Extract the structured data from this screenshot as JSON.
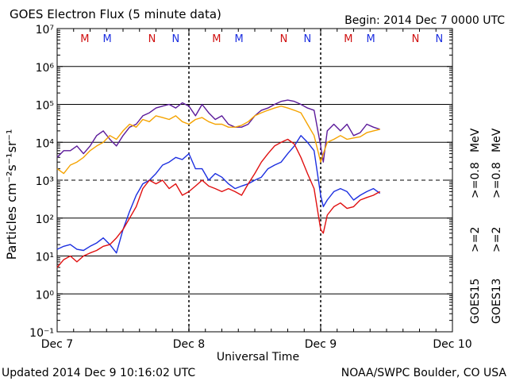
{
  "header": {
    "title": "GOES Electron Flux (5 minute data)",
    "begin": "Begin: 2014 Dec 7 0000 UTC"
  },
  "footer": {
    "updated": "Updated 2014 Dec  9 10:16:02 UTC",
    "credit": "NOAA/SWPC Boulder, CO USA"
  },
  "colors": {
    "goes15_08": "#5b1a9a",
    "goes13_08": "#f5a300",
    "goes15_2": "#1c2fe0",
    "goes13_2": "#e01010",
    "marker_m_red": "#d01010",
    "marker_m_blue": "#1c2fe0"
  },
  "chart_data": {
    "type": "line",
    "title": "GOES Electron Flux (5 minute data)",
    "xlabel": "Universal Time",
    "ylabel": "Particles cm⁻²s⁻¹sr⁻¹",
    "x_tick_labels": [
      "Dec 7",
      "Dec 8",
      "Dec 9",
      "Dec 10"
    ],
    "x_range_days": [
      0,
      3
    ],
    "y_scale": "log",
    "y_tick_labels": [
      "10⁻¹",
      "10⁰",
      "10¹",
      "10²",
      "10³",
      "10⁴",
      "10⁵",
      "10⁶",
      "10⁷"
    ],
    "ylim": [
      0.1,
      10000000
    ],
    "threshold": 1000,
    "right_labels": {
      "goes15": "GOES15",
      "goes13": "GOES13",
      "ge2_a": ">=2",
      "ge2_b": ">=2",
      "ge08_a": ">=0.8",
      "ge08_b": ">=0.8",
      "mev_a": "MeV",
      "mev_b": "MeV"
    },
    "markers": [
      {
        "label": "M",
        "x": 0.21,
        "color": "red"
      },
      {
        "label": "M",
        "x": 0.38,
        "color": "blue"
      },
      {
        "label": "N",
        "x": 0.72,
        "color": "red"
      },
      {
        "label": "N",
        "x": 0.9,
        "color": "blue"
      },
      {
        "label": "M",
        "x": 1.21,
        "color": "red"
      },
      {
        "label": "M",
        "x": 1.38,
        "color": "blue"
      },
      {
        "label": "N",
        "x": 1.72,
        "color": "red"
      },
      {
        "label": "N",
        "x": 1.9,
        "color": "blue"
      },
      {
        "label": "M",
        "x": 2.21,
        "color": "red"
      },
      {
        "label": "M",
        "x": 2.38,
        "color": "blue"
      },
      {
        "label": "N",
        "x": 2.72,
        "color": "red"
      },
      {
        "label": "N",
        "x": 2.9,
        "color": "blue"
      }
    ],
    "series": [
      {
        "name": "GOES15 >=0.8 MeV",
        "color": "#5b1a9a",
        "x": [
          0.0,
          0.05,
          0.1,
          0.15,
          0.2,
          0.25,
          0.3,
          0.35,
          0.4,
          0.45,
          0.5,
          0.55,
          0.6,
          0.65,
          0.7,
          0.75,
          0.8,
          0.85,
          0.9,
          0.95,
          1.0,
          1.05,
          1.1,
          1.15,
          1.2,
          1.25,
          1.3,
          1.35,
          1.4,
          1.45,
          1.5,
          1.55,
          1.6,
          1.65,
          1.7,
          1.75,
          1.8,
          1.85,
          1.9,
          1.95,
          2.0,
          2.02,
          2.05,
          2.1,
          2.15,
          2.2,
          2.25,
          2.3,
          2.35,
          2.4,
          2.45
        ],
        "y": [
          4000,
          6000,
          6000,
          8000,
          5000,
          8000,
          15000,
          20000,
          12000,
          8000,
          15000,
          25000,
          30000,
          50000,
          60000,
          80000,
          90000,
          100000,
          80000,
          110000,
          90000,
          50000,
          100000,
          60000,
          40000,
          50000,
          30000,
          25000,
          25000,
          30000,
          50000,
          70000,
          80000,
          100000,
          120000,
          130000,
          120000,
          100000,
          80000,
          70000,
          8000,
          3000,
          20000,
          30000,
          20000,
          30000,
          15000,
          18000,
          30000,
          25000,
          22000
        ]
      },
      {
        "name": "GOES13 >=0.8 MeV",
        "color": "#f5a300",
        "x": [
          0.0,
          0.05,
          0.1,
          0.15,
          0.2,
          0.25,
          0.3,
          0.35,
          0.4,
          0.45,
          0.5,
          0.55,
          0.6,
          0.65,
          0.7,
          0.75,
          0.8,
          0.85,
          0.9,
          0.95,
          1.0,
          1.05,
          1.1,
          1.15,
          1.2,
          1.25,
          1.3,
          1.35,
          1.4,
          1.45,
          1.5,
          1.55,
          1.6,
          1.65,
          1.7,
          1.75,
          1.8,
          1.85,
          1.9,
          1.95,
          2.0,
          2.02,
          2.05,
          2.1,
          2.15,
          2.2,
          2.25,
          2.3,
          2.35,
          2.4,
          2.45
        ],
        "y": [
          2000,
          1500,
          2500,
          3000,
          4000,
          6000,
          8000,
          10000,
          15000,
          12000,
          20000,
          30000,
          25000,
          40000,
          35000,
          50000,
          45000,
          40000,
          50000,
          35000,
          30000,
          40000,
          45000,
          35000,
          30000,
          30000,
          25000,
          25000,
          28000,
          35000,
          50000,
          60000,
          70000,
          80000,
          90000,
          80000,
          70000,
          60000,
          30000,
          15000,
          3000,
          5000,
          10000,
          12000,
          15000,
          12000,
          13000,
          14000,
          18000,
          20000,
          22000
        ]
      },
      {
        "name": "GOES15 >=2 MeV",
        "color": "#1c2fe0",
        "x": [
          0.0,
          0.05,
          0.1,
          0.15,
          0.2,
          0.25,
          0.3,
          0.35,
          0.4,
          0.45,
          0.5,
          0.55,
          0.6,
          0.65,
          0.7,
          0.75,
          0.8,
          0.85,
          0.9,
          0.95,
          1.0,
          1.05,
          1.1,
          1.15,
          1.2,
          1.25,
          1.3,
          1.35,
          1.4,
          1.45,
          1.5,
          1.55,
          1.6,
          1.65,
          1.7,
          1.75,
          1.8,
          1.85,
          1.9,
          1.95,
          2.0,
          2.02,
          2.05,
          2.1,
          2.15,
          2.2,
          2.25,
          2.3,
          2.35,
          2.4,
          2.45
        ],
        "y": [
          15,
          18,
          20,
          15,
          14,
          18,
          22,
          30,
          20,
          12,
          50,
          150,
          400,
          800,
          1000,
          1500,
          2500,
          3000,
          4000,
          3500,
          5000,
          2000,
          2000,
          1000,
          1500,
          1200,
          800,
          600,
          700,
          800,
          1000,
          1200,
          2000,
          2500,
          3000,
          5000,
          8000,
          15000,
          10000,
          6000,
          400,
          200,
          300,
          500,
          600,
          500,
          300,
          400,
          500,
          600,
          450
        ]
      },
      {
        "name": "GOES13 >=2 MeV",
        "color": "#e01010",
        "x": [
          0.0,
          0.05,
          0.1,
          0.15,
          0.2,
          0.25,
          0.3,
          0.35,
          0.4,
          0.45,
          0.5,
          0.55,
          0.6,
          0.65,
          0.7,
          0.75,
          0.8,
          0.85,
          0.9,
          0.95,
          1.0,
          1.05,
          1.1,
          1.15,
          1.2,
          1.25,
          1.3,
          1.35,
          1.4,
          1.45,
          1.5,
          1.55,
          1.6,
          1.65,
          1.7,
          1.75,
          1.8,
          1.85,
          1.9,
          1.95,
          2.0,
          2.02,
          2.05,
          2.1,
          2.15,
          2.2,
          2.25,
          2.3,
          2.35,
          2.4,
          2.45
        ],
        "y": [
          5,
          8,
          10,
          7,
          10,
          12,
          14,
          18,
          20,
          30,
          50,
          100,
          200,
          600,
          1000,
          800,
          1000,
          600,
          800,
          400,
          500,
          700,
          1000,
          700,
          600,
          500,
          600,
          500,
          400,
          800,
          1500,
          3000,
          5000,
          8000,
          10000,
          12000,
          9000,
          4000,
          1500,
          600,
          50,
          40,
          120,
          200,
          250,
          180,
          200,
          300,
          350,
          400,
          500
        ]
      }
    ]
  }
}
